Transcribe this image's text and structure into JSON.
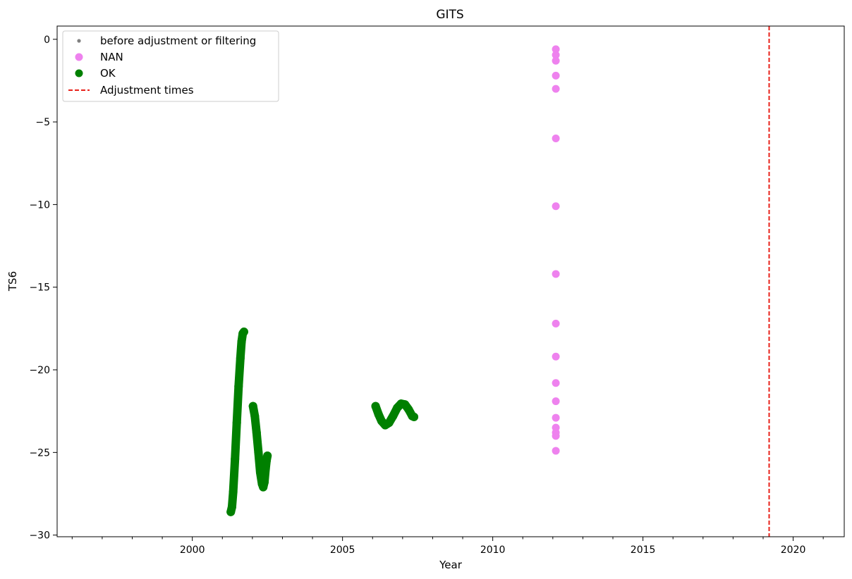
{
  "chart_data": {
    "type": "scatter",
    "title": "GITS",
    "xlabel": "Year",
    "ylabel": "TS6",
    "xlim": [
      1995.5,
      2021.7
    ],
    "ylim": [
      -30.1,
      0.8
    ],
    "xticks": [
      2000,
      2005,
      2010,
      2015,
      2020
    ],
    "yticks": [
      0,
      -5,
      -10,
      -15,
      -20,
      -25,
      -30
    ],
    "grid": false,
    "legend_position": "top-left",
    "legend": [
      {
        "label": "before adjustment or filtering",
        "marker": "small-dot",
        "color": "#808080"
      },
      {
        "label": "NAN",
        "marker": "dot",
        "color": "#ee82ee"
      },
      {
        "label": "OK",
        "marker": "dot",
        "color": "#008000"
      },
      {
        "label": "Adjustment times",
        "marker": "dashed-line",
        "color": "#e8211a"
      }
    ],
    "series": [
      {
        "name": "OK",
        "color": "#008000",
        "segments": [
          [
            [
              2001.28,
              -28.6
            ],
            [
              2001.32,
              -28.3
            ],
            [
              2001.36,
              -27.4
            ],
            [
              2001.42,
              -25.4
            ],
            [
              2001.48,
              -23.2
            ],
            [
              2001.54,
              -21.0
            ],
            [
              2001.6,
              -19.3
            ],
            [
              2001.64,
              -18.3
            ],
            [
              2001.68,
              -17.8
            ],
            [
              2001.72,
              -17.7
            ]
          ],
          [
            [
              2002.02,
              -22.2
            ],
            [
              2002.08,
              -22.8
            ],
            [
              2002.14,
              -23.8
            ],
            [
              2002.2,
              -25.0
            ],
            [
              2002.26,
              -26.2
            ],
            [
              2002.32,
              -26.9
            ],
            [
              2002.36,
              -27.1
            ],
            [
              2002.4,
              -26.8
            ],
            [
              2002.44,
              -26.0
            ],
            [
              2002.47,
              -25.5
            ],
            [
              2002.5,
              -25.2
            ]
          ],
          [
            [
              2006.1,
              -22.2
            ],
            [
              2006.2,
              -22.7
            ],
            [
              2006.3,
              -23.1
            ],
            [
              2006.42,
              -23.35
            ],
            [
              2006.55,
              -23.2
            ],
            [
              2006.68,
              -22.8
            ],
            [
              2006.82,
              -22.3
            ],
            [
              2006.95,
              -22.05
            ],
            [
              2007.08,
              -22.1
            ],
            [
              2007.2,
              -22.4
            ],
            [
              2007.32,
              -22.8
            ],
            [
              2007.38,
              -22.85
            ]
          ]
        ]
      },
      {
        "name": "NAN",
        "color": "#ee82ee",
        "points": [
          [
            2012.1,
            -0.6
          ],
          [
            2012.1,
            -0.95
          ],
          [
            2012.1,
            -1.3
          ],
          [
            2012.1,
            -2.2
          ],
          [
            2012.1,
            -3.0
          ],
          [
            2012.1,
            -6.0
          ],
          [
            2012.1,
            -10.1
          ],
          [
            2012.1,
            -14.2
          ],
          [
            2012.1,
            -17.2
          ],
          [
            2012.1,
            -19.2
          ],
          [
            2012.1,
            -20.8
          ],
          [
            2012.1,
            -21.9
          ],
          [
            2012.1,
            -22.9
          ],
          [
            2012.1,
            -23.5
          ],
          [
            2012.1,
            -23.8
          ],
          [
            2012.1,
            -24.0
          ],
          [
            2012.1,
            -24.9
          ]
        ]
      }
    ],
    "adjustment_times": [
      2019.2
    ]
  }
}
